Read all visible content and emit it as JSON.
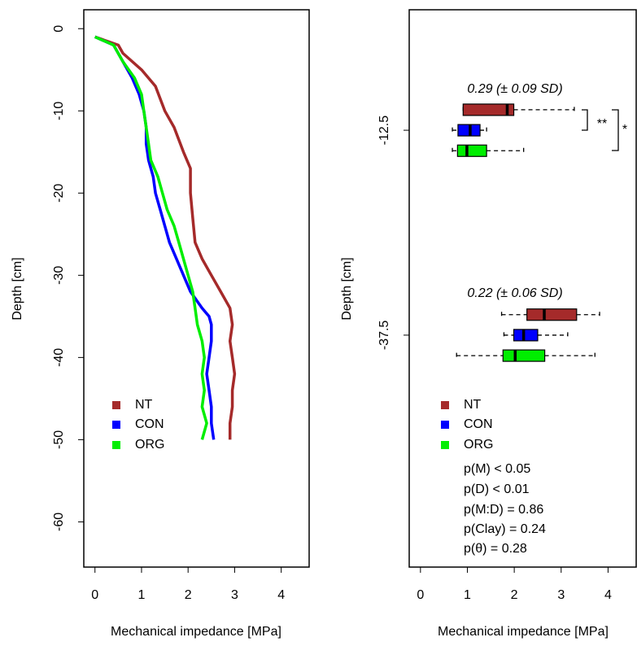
{
  "chart_data": [
    {
      "type": "line",
      "x_label": "Mechanical impedance [MPa]",
      "y_label": "Depth [cm]",
      "xlim": [
        -0.24,
        4.6
      ],
      "ylim": [
        -65.5,
        2.3
      ],
      "xticks": [
        0,
        1,
        2,
        3,
        4
      ],
      "yticks": [
        0,
        -10,
        -20,
        -30,
        -40,
        -50,
        -60
      ],
      "series": [
        {
          "name": "NT",
          "color": "#a52a2a",
          "x": [
            0,
            0.5,
            0.6,
            1.0,
            1.3,
            1.5,
            1.7,
            1.9,
            2.05,
            2.05,
            2.1,
            2.15,
            2.3,
            2.5,
            2.7,
            2.9,
            2.95,
            2.9,
            2.95,
            3.0,
            2.95,
            2.95,
            2.9,
            2.9
          ],
          "values": [
            -1,
            -2,
            -3,
            -5,
            -7,
            -10,
            -12,
            -15,
            -17,
            -20,
            -23,
            -26,
            -28,
            -30,
            -32,
            -34,
            -36,
            -38,
            -40,
            -42,
            -44,
            -46,
            -48,
            -50
          ]
        },
        {
          "name": "CON",
          "color": "#0000ff",
          "x": [
            0,
            0.4,
            0.6,
            0.8,
            0.95,
            1.05,
            1.1,
            1.1,
            1.15,
            1.25,
            1.3,
            1.4,
            1.5,
            1.6,
            1.75,
            1.9,
            2.05,
            2.3,
            2.45,
            2.5,
            2.5,
            2.45,
            2.4,
            2.45,
            2.5,
            2.5,
            2.55
          ],
          "values": [
            -1,
            -2,
            -4,
            -6,
            -8,
            -10,
            -12,
            -14,
            -16,
            -18,
            -20,
            -22,
            -24,
            -26,
            -28,
            -30,
            -32,
            -34,
            -35,
            -36,
            -38,
            -40,
            -42,
            -44,
            -46,
            -48,
            -50
          ]
        },
        {
          "name": "ORG",
          "color": "#00ee00",
          "x": [
            0,
            0.4,
            0.6,
            0.85,
            1.0,
            1.05,
            1.1,
            1.15,
            1.2,
            1.35,
            1.45,
            1.55,
            1.7,
            1.8,
            1.9,
            2.0,
            2.1,
            2.15,
            2.2,
            2.3,
            2.35,
            2.3,
            2.35,
            2.3,
            2.4,
            2.3
          ],
          "values": [
            -1,
            -2,
            -4,
            -6,
            -8,
            -10,
            -12,
            -14,
            -16,
            -18,
            -20,
            -22,
            -24,
            -26,
            -28,
            -30,
            -32,
            -34,
            -36,
            -38,
            -40,
            -42,
            -44,
            -46,
            -48,
            -50
          ]
        }
      ]
    },
    {
      "type": "box",
      "x_label": "Mechanical impedance [MPa]",
      "y_label": "Depth [cm]",
      "xlim": [
        -0.24,
        4.6
      ],
      "ylim": [
        -65.8,
        2.2
      ],
      "xticks": [
        0,
        1,
        2,
        3,
        4
      ],
      "yticks": [
        -12.5,
        -37.5
      ],
      "positions": [
        -12.5,
        -37.5
      ],
      "series": [
        {
          "name": "NT",
          "color": "#a52a2a",
          "boxes": [
            {
              "low": 0.91,
              "q1": 0.91,
              "med": 1.85,
              "q3": 1.99,
              "high": 3.28
            },
            {
              "low": 1.73,
              "q1": 2.27,
              "med": 2.64,
              "q3": 3.33,
              "high": 3.82
            }
          ]
        },
        {
          "name": "CON",
          "color": "#0000ff",
          "boxes": [
            {
              "low": 0.68,
              "q1": 0.8,
              "med": 1.06,
              "q3": 1.27,
              "high": 1.41
            },
            {
              "low": 1.78,
              "q1": 1.99,
              "med": 2.2,
              "q3": 2.5,
              "high": 3.14
            }
          ]
        },
        {
          "name": "ORG",
          "color": "#00ee00",
          "boxes": [
            {
              "low": 0.68,
              "q1": 0.79,
              "med": 0.99,
              "q3": 1.41,
              "high": 2.2
            },
            {
              "low": 0.77,
              "q1": 1.76,
              "med": 2.02,
              "q3": 2.65,
              "high": 3.72
            }
          ]
        }
      ],
      "annotations": [
        "0.29 (± 0.09 SD)",
        "0.22 (± 0.06 SD)",
        "**",
        "*"
      ],
      "stats": [
        "p(M) < 0.05",
        "p(D) < 0.01",
        "p(M:D) = 0.86",
        "p(Clay) = 0.24",
        "p(θ) = 0.28"
      ]
    }
  ]
}
